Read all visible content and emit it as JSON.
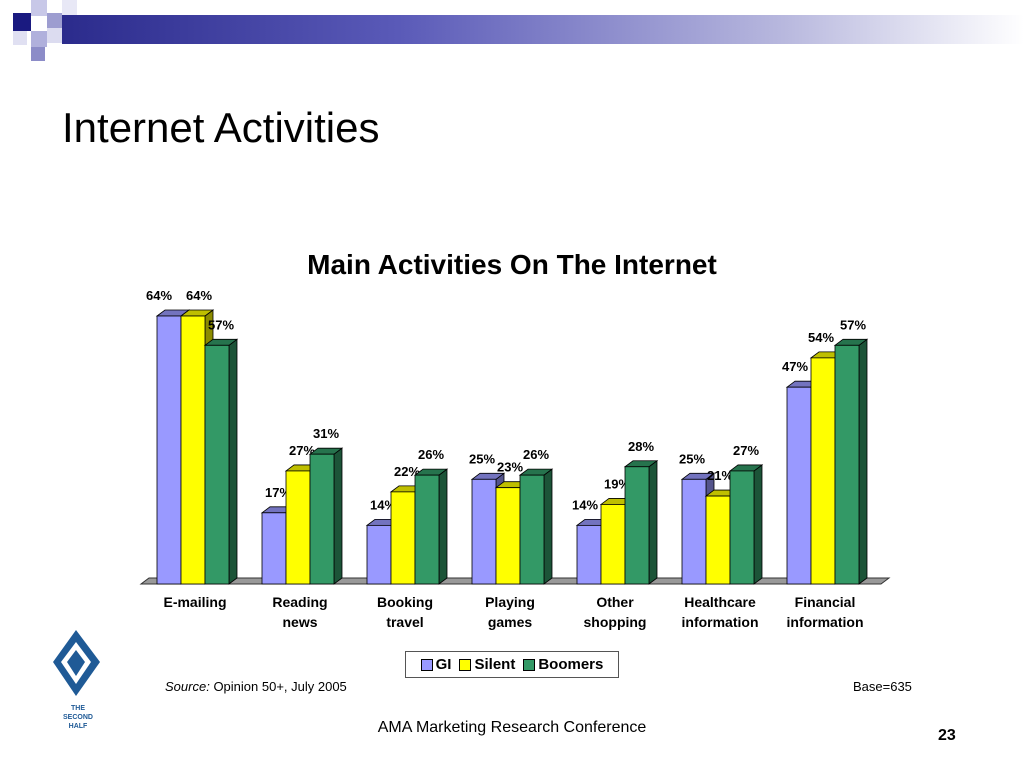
{
  "slide": {
    "title": "Internet Activities",
    "footer": "AMA Marketing Research Conference",
    "page_number": "23",
    "source_label": "Source:",
    "source_text": "Opinion 50+, July 2005",
    "base": "Base=635",
    "logo_text": [
      "THE",
      "SECOND",
      "HALF"
    ]
  },
  "chart_data": {
    "type": "bar",
    "title": "Main Activities On The Internet",
    "categories": [
      [
        "E-mailing"
      ],
      [
        "Reading",
        "news"
      ],
      [
        "Booking",
        "travel"
      ],
      [
        "Playing",
        "games"
      ],
      [
        "Other",
        "shopping"
      ],
      [
        "Healthcare",
        "information"
      ],
      [
        "Financial",
        "information"
      ]
    ],
    "series": [
      {
        "name": "GI",
        "values": [
          64,
          17,
          14,
          25,
          14,
          25,
          47
        ],
        "color": "#9999ff"
      },
      {
        "name": "Silent",
        "values": [
          64,
          27,
          22,
          23,
          19,
          21,
          54
        ],
        "color": "#ffff00"
      },
      {
        "name": "Boomers",
        "values": [
          57,
          31,
          26,
          26,
          28,
          27,
          57
        ],
        "color": "#339966"
      }
    ],
    "value_suffix": "%",
    "ylim": [
      0,
      64
    ],
    "grid": false,
    "legend_position": "bottom"
  }
}
